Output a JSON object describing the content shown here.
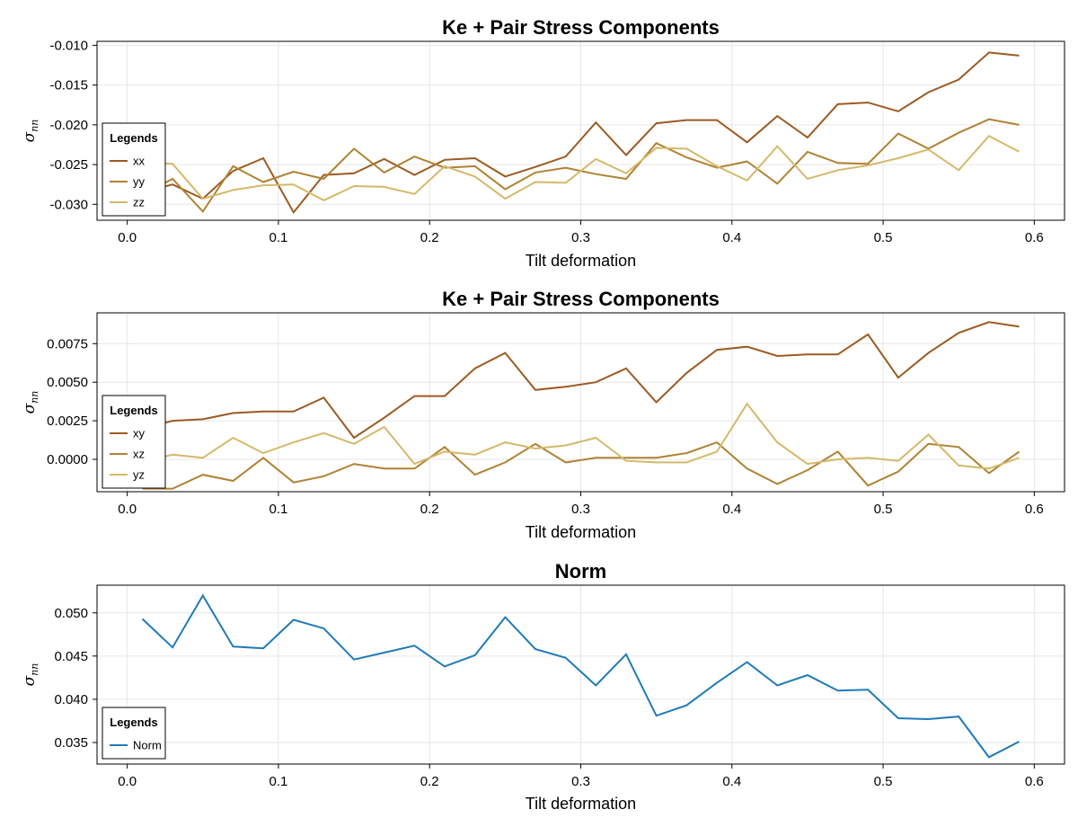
{
  "chart_data": [
    {
      "type": "line",
      "title": "Ke + Pair Stress Components",
      "xlabel": "Tilt deformation",
      "ylabel": "σnn",
      "xlim": [
        -0.02,
        0.62
      ],
      "ylim": [
        -0.032,
        -0.0095
      ],
      "xticks": [
        "0.0",
        "0.1",
        "0.2",
        "0.3",
        "0.4",
        "0.5",
        "0.6"
      ],
      "yticks": [
        "-0.010",
        "-0.015",
        "-0.020",
        "-0.025",
        "-0.030"
      ],
      "grid": true,
      "legend": {
        "title": "Legends",
        "placement": "left"
      },
      "x": [
        0.01,
        0.03,
        0.05,
        0.07,
        0.09,
        0.11,
        0.13,
        0.15,
        0.17,
        0.19,
        0.21,
        0.23,
        0.25,
        0.27,
        0.29,
        0.31,
        0.33,
        0.35,
        0.37,
        0.39,
        0.41,
        0.43,
        0.45,
        0.47,
        0.49,
        0.51,
        0.53,
        0.55,
        0.57,
        0.59
      ],
      "series": [
        {
          "name": "xx",
          "color": "#9c5a22",
          "values": [
            -0.0285,
            -0.0275,
            -0.0293,
            -0.0258,
            -0.0242,
            -0.031,
            -0.0263,
            -0.0261,
            -0.0243,
            -0.0263,
            -0.0244,
            -0.0242,
            -0.0265,
            -0.0253,
            -0.024,
            -0.0197,
            -0.0238,
            -0.0198,
            -0.0194,
            -0.0194,
            -0.0222,
            -0.0189,
            -0.0216,
            -0.0174,
            -0.0172,
            -0.0183,
            -0.0159,
            -0.0143,
            -0.0109,
            -0.0113
          ]
        },
        {
          "name": "yy",
          "color": "#b08232",
          "values": [
            -0.0288,
            -0.0268,
            -0.0309,
            -0.0252,
            -0.0272,
            -0.0259,
            -0.0268,
            -0.023,
            -0.026,
            -0.024,
            -0.0254,
            -0.0252,
            -0.0281,
            -0.026,
            -0.0254,
            -0.0262,
            -0.0268,
            -0.0223,
            -0.0241,
            -0.0254,
            -0.0246,
            -0.0274,
            -0.0234,
            -0.0248,
            -0.0249,
            -0.0211,
            -0.023,
            -0.021,
            -0.0193,
            -0.02
          ]
        },
        {
          "name": "zz",
          "color": "#d4b96a",
          "values": [
            -0.0248,
            -0.0249,
            -0.0293,
            -0.0282,
            -0.0276,
            -0.0275,
            -0.0295,
            -0.0277,
            -0.0278,
            -0.0287,
            -0.0252,
            -0.0265,
            -0.0293,
            -0.0272,
            -0.0273,
            -0.0243,
            -0.0261,
            -0.0229,
            -0.023,
            -0.0252,
            -0.027,
            -0.0227,
            -0.0268,
            -0.0257,
            -0.0251,
            -0.0242,
            -0.0231,
            -0.0257,
            -0.0214,
            -0.0234
          ]
        }
      ]
    },
    {
      "type": "line",
      "title": "Ke + Pair Stress Components",
      "xlabel": "Tilt deformation",
      "ylabel": "σnn",
      "xlim": [
        -0.02,
        0.62
      ],
      "ylim": [
        -0.0021,
        0.0095
      ],
      "xticks": [
        "0.0",
        "0.1",
        "0.2",
        "0.3",
        "0.4",
        "0.5",
        "0.6"
      ],
      "yticks": [
        "0.0075",
        "0.0050",
        "0.0025",
        "0.0000"
      ],
      "grid": true,
      "legend": {
        "title": "Legends",
        "placement": "left"
      },
      "x": [
        0.01,
        0.03,
        0.05,
        0.07,
        0.09,
        0.11,
        0.13,
        0.15,
        0.17,
        0.19,
        0.21,
        0.23,
        0.25,
        0.27,
        0.29,
        0.31,
        0.33,
        0.35,
        0.37,
        0.39,
        0.41,
        0.43,
        0.45,
        0.47,
        0.49,
        0.51,
        0.53,
        0.55,
        0.57,
        0.59
      ],
      "series": [
        {
          "name": "xy",
          "color": "#9c5a22",
          "values": [
            0.002,
            0.0025,
            0.0026,
            0.003,
            0.0031,
            0.0031,
            0.004,
            0.0014,
            0.0027,
            0.0041,
            0.0041,
            0.0059,
            0.0069,
            0.0045,
            0.0047,
            0.005,
            0.0059,
            0.0037,
            0.0056,
            0.0071,
            0.0073,
            0.0067,
            0.0068,
            0.0068,
            0.0081,
            0.0053,
            0.0069,
            0.0082,
            0.0089,
            0.0086
          ]
        },
        {
          "name": "xz",
          "color": "#b08232",
          "values": [
            -0.0019,
            -0.0019,
            -0.001,
            -0.0014,
            0.0001,
            -0.0015,
            -0.0011,
            -0.0003,
            -0.0006,
            -0.0006,
            0.0008,
            -0.001,
            -0.0002,
            0.001,
            -0.0002,
            0.0001,
            0.0001,
            0.0001,
            0.0004,
            0.0011,
            -0.0006,
            -0.0016,
            -0.0007,
            0.0005,
            -0.0017,
            -0.0008,
            0.001,
            0.0008,
            -0.0009,
            0.0005
          ]
        },
        {
          "name": "yz",
          "color": "#d4b96a",
          "values": [
            -0.0002,
            0.0003,
            0.0001,
            0.0014,
            0.0004,
            0.0011,
            0.0017,
            0.001,
            0.0021,
            -0.0003,
            0.0005,
            0.0003,
            0.0011,
            0.0007,
            0.0009,
            0.0014,
            -0.0001,
            -0.0002,
            -0.0002,
            0.0005,
            0.0036,
            0.0011,
            -0.0003,
            0.0,
            0.0001,
            -0.0001,
            0.0016,
            -0.0004,
            -0.0006,
            0.0001
          ]
        }
      ]
    },
    {
      "type": "line",
      "title": "Norm",
      "xlabel": "Tilt deformation",
      "ylabel": "σnn",
      "xlim": [
        -0.02,
        0.62
      ],
      "ylim": [
        0.0325,
        0.0532
      ],
      "xticks": [
        "0.0",
        "0.1",
        "0.2",
        "0.3",
        "0.4",
        "0.5",
        "0.6"
      ],
      "yticks": [
        "0.050",
        "0.045",
        "0.040",
        "0.035"
      ],
      "grid": true,
      "legend": {
        "title": "Legends",
        "placement": "bottom-left"
      },
      "x": [
        0.01,
        0.03,
        0.05,
        0.07,
        0.09,
        0.11,
        0.13,
        0.15,
        0.17,
        0.19,
        0.21,
        0.23,
        0.25,
        0.27,
        0.29,
        0.31,
        0.33,
        0.35,
        0.37,
        0.39,
        0.41,
        0.43,
        0.45,
        0.47,
        0.49,
        0.51,
        0.53,
        0.55,
        0.57,
        0.59
      ],
      "series": [
        {
          "name": "Norm",
          "color": "#1f7ab8",
          "values": [
            0.0493,
            0.046,
            0.052,
            0.0461,
            0.0459,
            0.0492,
            0.0482,
            0.0446,
            0.0454,
            0.0462,
            0.0438,
            0.0451,
            0.0495,
            0.0458,
            0.0448,
            0.0416,
            0.0452,
            0.0381,
            0.0393,
            0.0419,
            0.0443,
            0.0416,
            0.0428,
            0.041,
            0.0411,
            0.0378,
            0.0377,
            0.038,
            0.0333,
            0.0351
          ]
        }
      ]
    }
  ]
}
